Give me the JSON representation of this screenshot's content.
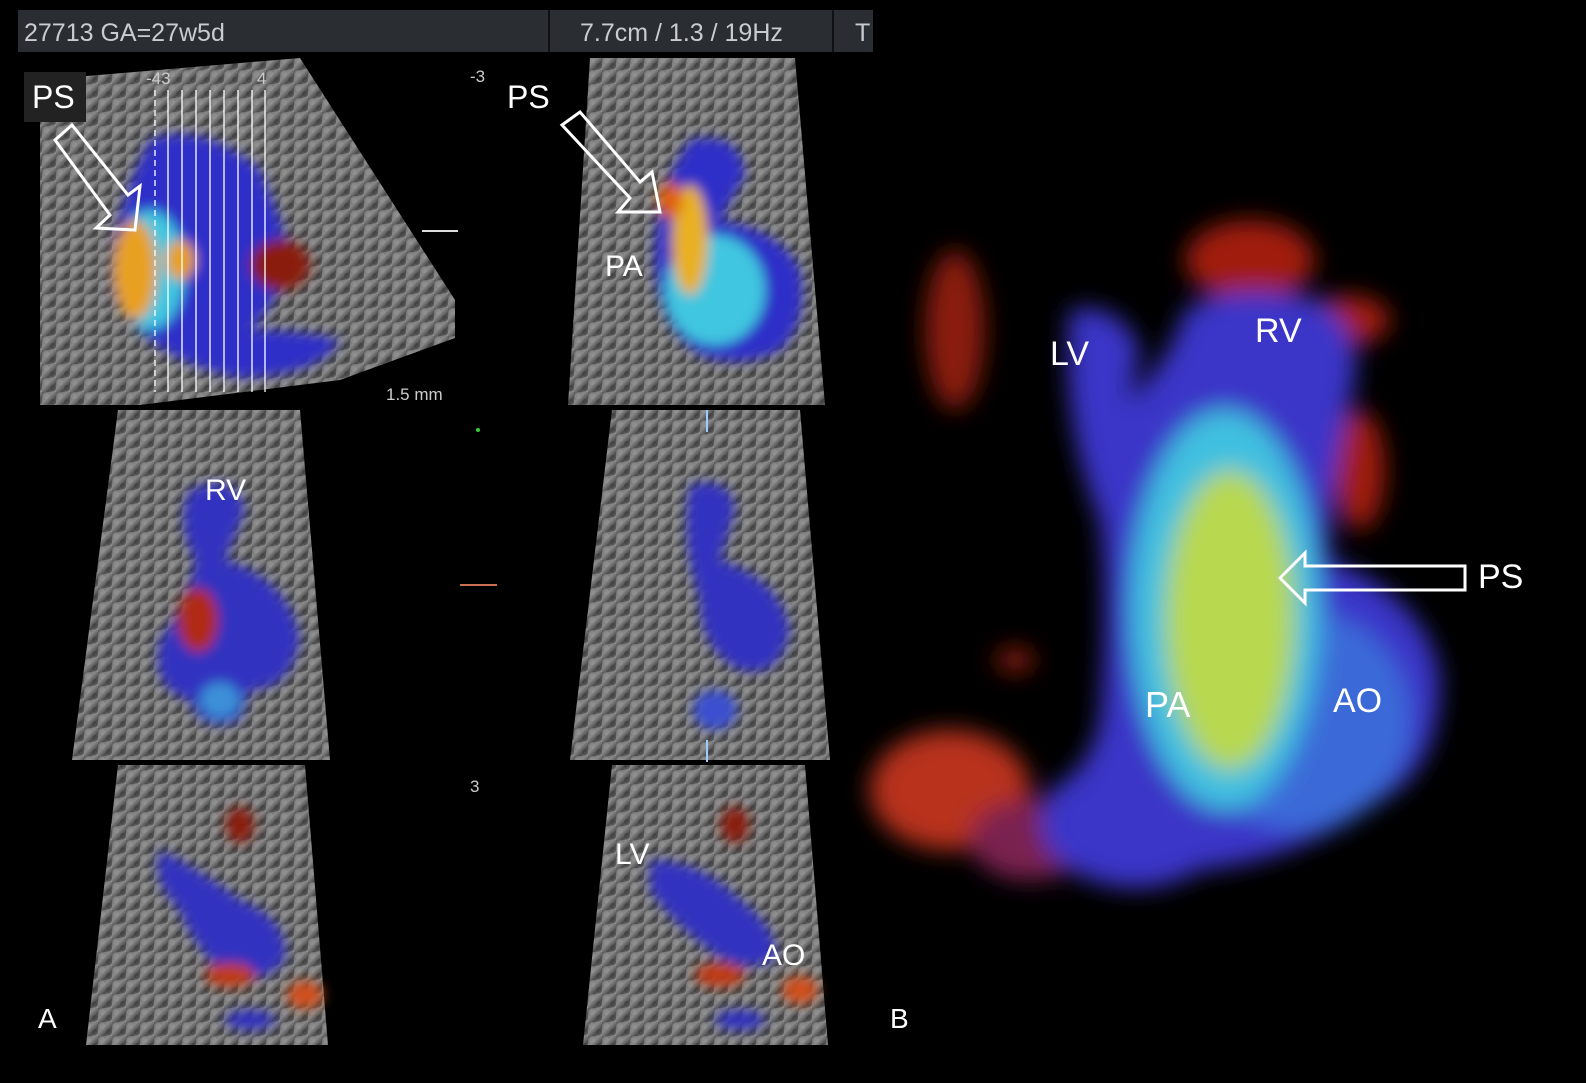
{
  "header": {
    "patient_info": "27713 GA=27w5d",
    "scan_params": "7.7cm / 1.3 / 19Hz",
    "truncated": "T"
  },
  "panel_a": {
    "label": "A",
    "top_left": {
      "label_ps": "PS",
      "tick_left": "-43",
      "tick_right": "4",
      "scale": "1.5 mm"
    },
    "top_right": {
      "label_ps": "PS",
      "label_pa": "PA"
    },
    "mid_left": {
      "label_rv": "RV"
    },
    "bottom_right": {
      "label_lv": "LV",
      "label_ao": "AO"
    },
    "slice_marks": {
      "top": "-3",
      "bottom": "3"
    }
  },
  "panel_b": {
    "label": "B",
    "labels": {
      "lv": "LV",
      "rv": "RV",
      "ps": "PS",
      "pa": "PA",
      "ao": "AO"
    }
  },
  "colors": {
    "doppler_blue": "#2f2fc8",
    "doppler_cyan": "#3fc6e0",
    "doppler_yellow": "#d8c830",
    "doppler_red": "#b41e12",
    "tissue_gray": "#7a7a7a"
  }
}
